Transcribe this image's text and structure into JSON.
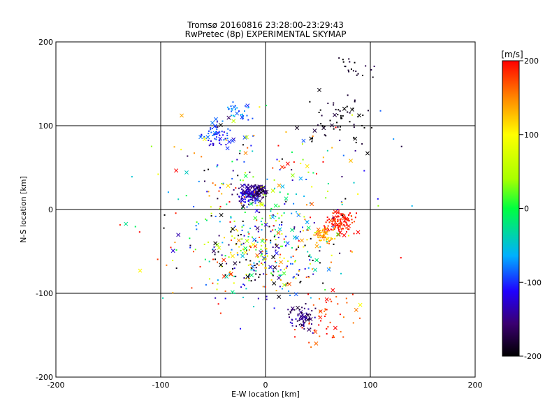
{
  "chart_data": {
    "type": "scatter",
    "title": "Tromsø 20160816 23:28:00-23:29:43",
    "subtitle": "RwPretec (8p) EXPERIMENTAL SKYMAP",
    "xlabel": "E-W location [km]",
    "ylabel": "N-S location [km]",
    "xlim": [
      -200,
      200
    ],
    "ylim": [
      -200,
      200
    ],
    "x_ticks": [
      "-200",
      "-100",
      "0",
      "100",
      "200"
    ],
    "y_ticks": [
      "200",
      "100",
      "0",
      "-100",
      "-200"
    ],
    "grid": true,
    "colorbar": {
      "label": "[m/s]",
      "range": [
        -200,
        200
      ],
      "ticks": [
        "200",
        "100",
        "0",
        "-100",
        "-200"
      ]
    },
    "clusters": [
      {
        "x": -15,
        "y": 18,
        "spread": 12,
        "velocity": -130,
        "count": 140
      },
      {
        "x": -5,
        "y": 22,
        "spread": 8,
        "velocity": -160,
        "count": 60
      },
      {
        "x": 70,
        "y": -15,
        "spread": 14,
        "velocity": 195,
        "count": 120
      },
      {
        "x": 55,
        "y": -30,
        "spread": 10,
        "velocity": 140,
        "count": 60
      },
      {
        "x": -45,
        "y": 90,
        "spread": 14,
        "velocity": -100,
        "count": 60
      },
      {
        "x": -25,
        "y": 115,
        "spread": 12,
        "velocity": -70,
        "count": 30
      },
      {
        "x": 35,
        "y": -130,
        "spread": 14,
        "velocity": -150,
        "count": 70
      },
      {
        "x": 70,
        "y": 110,
        "spread": 30,
        "velocity": -200,
        "count": 60
      },
      {
        "x": 85,
        "y": 170,
        "spread": 16,
        "velocity": -190,
        "count": 20
      },
      {
        "x": 60,
        "y": -130,
        "spread": 30,
        "velocity": 185,
        "count": 50
      },
      {
        "x": 0,
        "y": -60,
        "spread": 55,
        "velocity": -20,
        "count": 260
      },
      {
        "x": 0,
        "y": 0,
        "spread": 110,
        "velocity": 0,
        "count": 330
      }
    ]
  }
}
